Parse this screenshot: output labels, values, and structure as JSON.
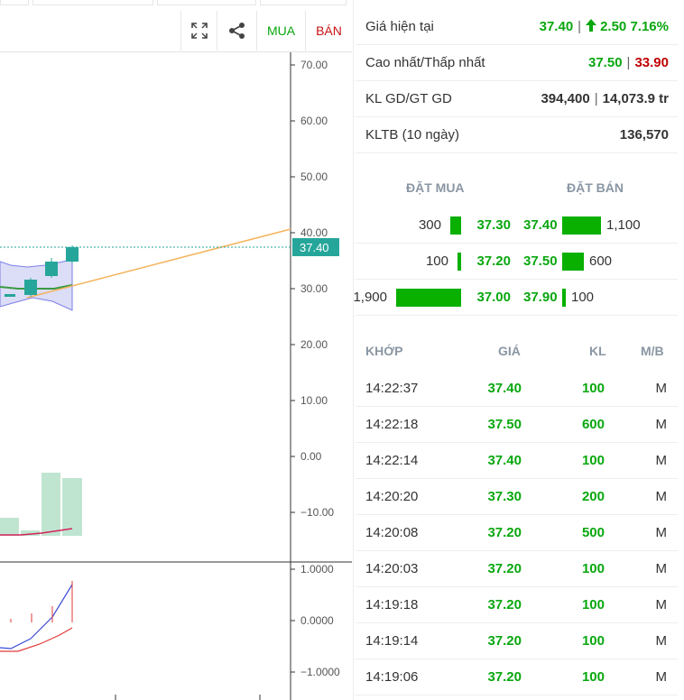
{
  "toolbar": {
    "mua_label": "MUA",
    "ban_label": "BÁN"
  },
  "chart": {
    "price_axis_ticks": [
      "70.00",
      "60.00",
      "50.00",
      "40.00",
      "30.00",
      "20.00",
      "10.00",
      "0.00",
      "−10.00"
    ],
    "current_price_tag": "37.40",
    "indicator_axis_ticks": [
      "1.0000",
      "0.0000",
      "−1.0000"
    ],
    "colors": {
      "candle": "#26a69a",
      "trendline": "#f5b35c",
      "ma_line": "#3a9a43",
      "band_fill": "#c5c6f0",
      "volume_bar": "#bfe5d0",
      "volume_ma": "#d4245a"
    }
  },
  "quote": {
    "current_label": "Giá hiện tại",
    "current_price": "37.40",
    "change": "2.50",
    "change_pct": "7.16%",
    "change_icon": "arrow-up-icon",
    "highlow_label": "Cao nhất/Thấp nhất",
    "high": "37.50",
    "low": "33.90",
    "volume_label": "KL GD/GT GD",
    "volume": "394,400",
    "value": "14,073.9 tr",
    "avg_label": "KLTB (10 ngày)",
    "avg_volume": "136,570"
  },
  "orderbook": {
    "buy_header": "ĐẶT MUA",
    "sell_header": "ĐẶT BÁN",
    "rows": [
      {
        "bid_vol": "300",
        "bid_price": "37.30",
        "ask_price": "37.40",
        "ask_vol": "1,100",
        "bid_ratio": 0.16,
        "ask_ratio": 0.6
      },
      {
        "bid_vol": "100",
        "bid_price": "37.20",
        "ask_price": "37.50",
        "ask_vol": "600",
        "bid_ratio": 0.05,
        "ask_ratio": 0.33
      },
      {
        "bid_vol": "1,900",
        "bid_price": "37.00",
        "ask_price": "37.90",
        "ask_vol": "100",
        "bid_ratio": 1.0,
        "ask_ratio": 0.05
      }
    ]
  },
  "trades": {
    "headers": {
      "time": "KHỚP",
      "price": "GIÁ",
      "volume": "KL",
      "side": "M/B"
    },
    "rows": [
      {
        "time": "14:22:37",
        "price": "37.40",
        "volume": "100",
        "side": "M"
      },
      {
        "time": "14:22:18",
        "price": "37.50",
        "volume": "600",
        "side": "M"
      },
      {
        "time": "14:22:14",
        "price": "37.40",
        "volume": "100",
        "side": "M"
      },
      {
        "time": "14:20:20",
        "price": "37.30",
        "volume": "200",
        "side": "M"
      },
      {
        "time": "14:20:08",
        "price": "37.20",
        "volume": "500",
        "side": "M"
      },
      {
        "time": "14:20:03",
        "price": "37.20",
        "volume": "100",
        "side": "M"
      },
      {
        "time": "14:19:18",
        "price": "37.20",
        "volume": "100",
        "side": "M"
      },
      {
        "time": "14:19:14",
        "price": "37.20",
        "volume": "100",
        "side": "M"
      },
      {
        "time": "14:19:06",
        "price": "37.20",
        "volume": "100",
        "side": "M"
      }
    ]
  }
}
